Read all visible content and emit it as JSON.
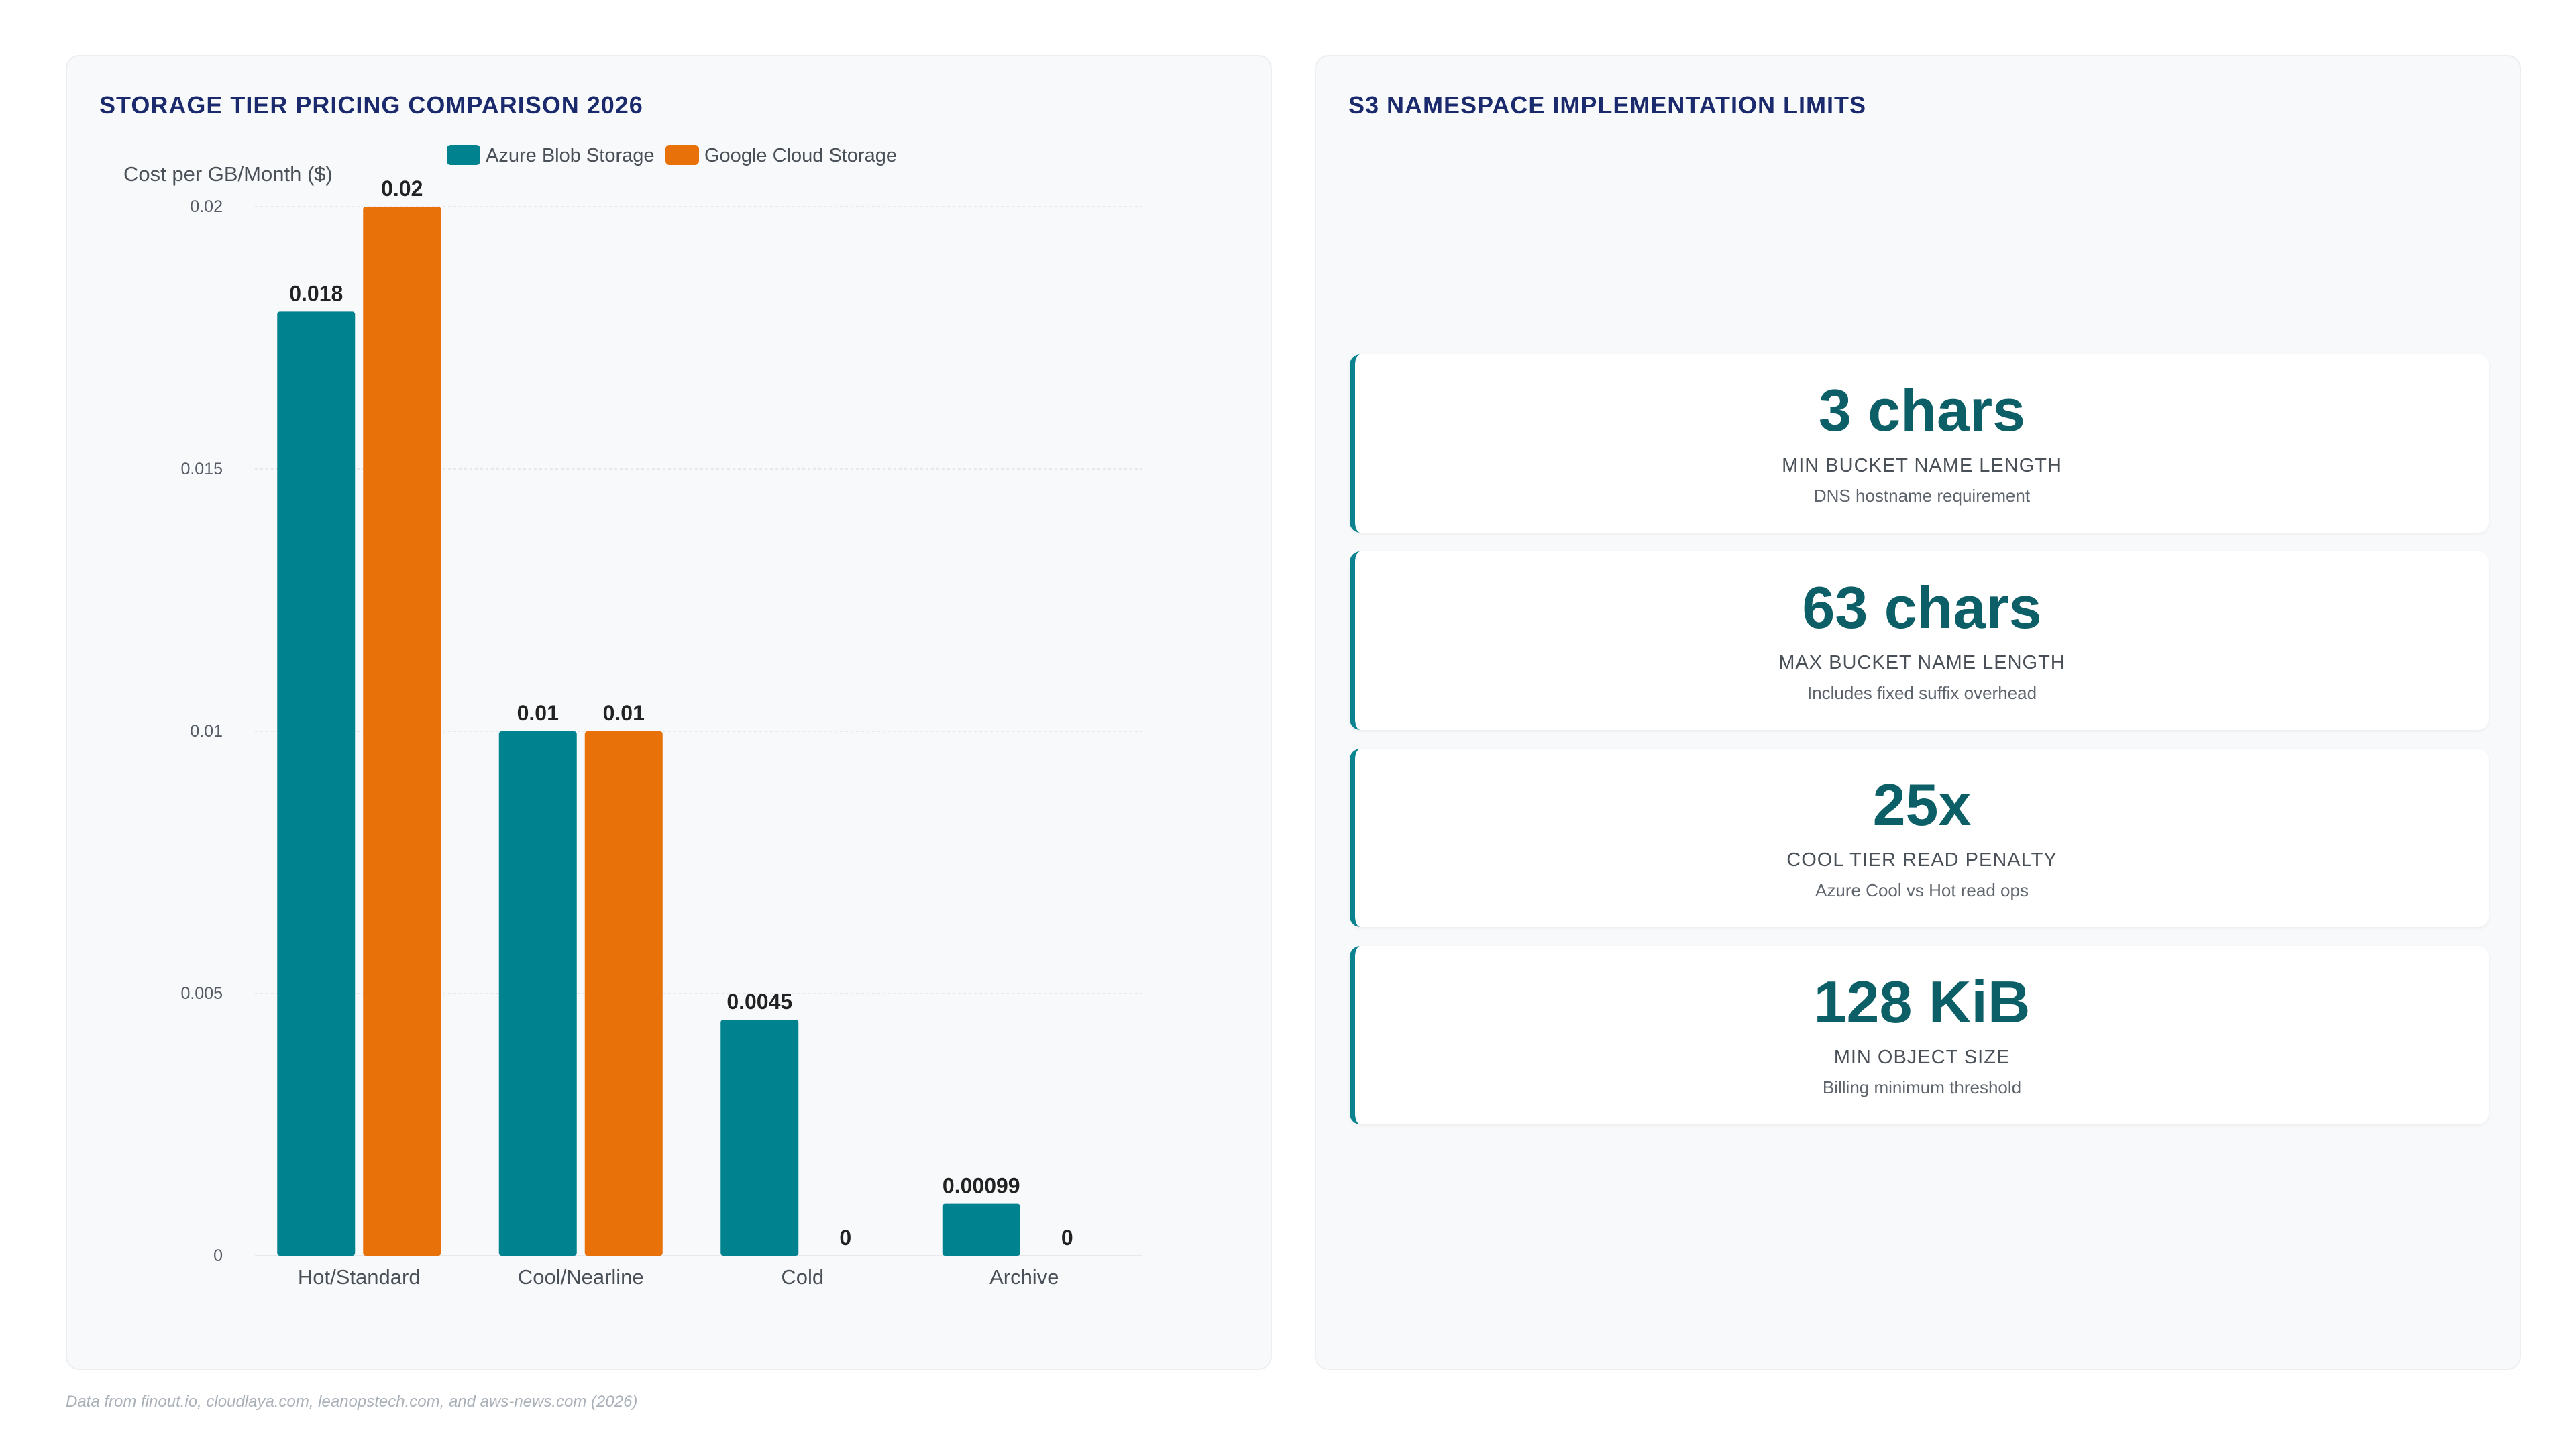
{
  "left_panel": {
    "title": "STORAGE TIER PRICING COMPARISON 2026"
  },
  "right_panel": {
    "title": "S3 NAMESPACE IMPLEMENTATION LIMITS",
    "kpis": [
      {
        "value": "3 chars",
        "label": "MIN BUCKET NAME LENGTH",
        "sub": "DNS hostname requirement"
      },
      {
        "value": "63 chars",
        "label": "MAX BUCKET NAME LENGTH",
        "sub": "Includes fixed suffix overhead"
      },
      {
        "value": "25x",
        "label": "COOL TIER READ PENALTY",
        "sub": "Azure Cool vs Hot read ops"
      },
      {
        "value": "128 KiB",
        "label": "MIN OBJECT SIZE",
        "sub": "Billing minimum threshold"
      }
    ]
  },
  "footnote": "Data from finout.io, cloudlaya.com, leanopstech.com, and aws-news.com (2026)",
  "colors": {
    "azure": "#00838f",
    "google": "#e8710a",
    "accent": "#0c5f66"
  },
  "chart_data": {
    "type": "bar",
    "title": "STORAGE TIER PRICING COMPARISON 2026",
    "ylabel": "Cost per GB/Month ($)",
    "xlabel": "",
    "categories": [
      "Hot/Standard",
      "Cool/Nearline",
      "Cold",
      "Archive"
    ],
    "series": [
      {
        "name": "Azure Blob Storage",
        "color": "#00838f",
        "values": [
          0.018,
          0.01,
          0.0045,
          0.00099
        ],
        "labels": [
          "0.018",
          "0.01",
          "0.0045",
          "0.00099"
        ]
      },
      {
        "name": "Google Cloud Storage",
        "color": "#e8710a",
        "values": [
          0.02,
          0.01,
          0,
          0
        ],
        "labels": [
          "0.02",
          "0.01",
          "0",
          "0"
        ]
      }
    ],
    "ylim": [
      0,
      0.02
    ],
    "yticks": [
      0,
      0.005,
      0.01,
      0.015,
      0.02
    ],
    "ytick_labels": [
      "0",
      "0.005",
      "0.01",
      "0.015",
      "0.02"
    ],
    "grid": true,
    "legend": "top-center"
  }
}
